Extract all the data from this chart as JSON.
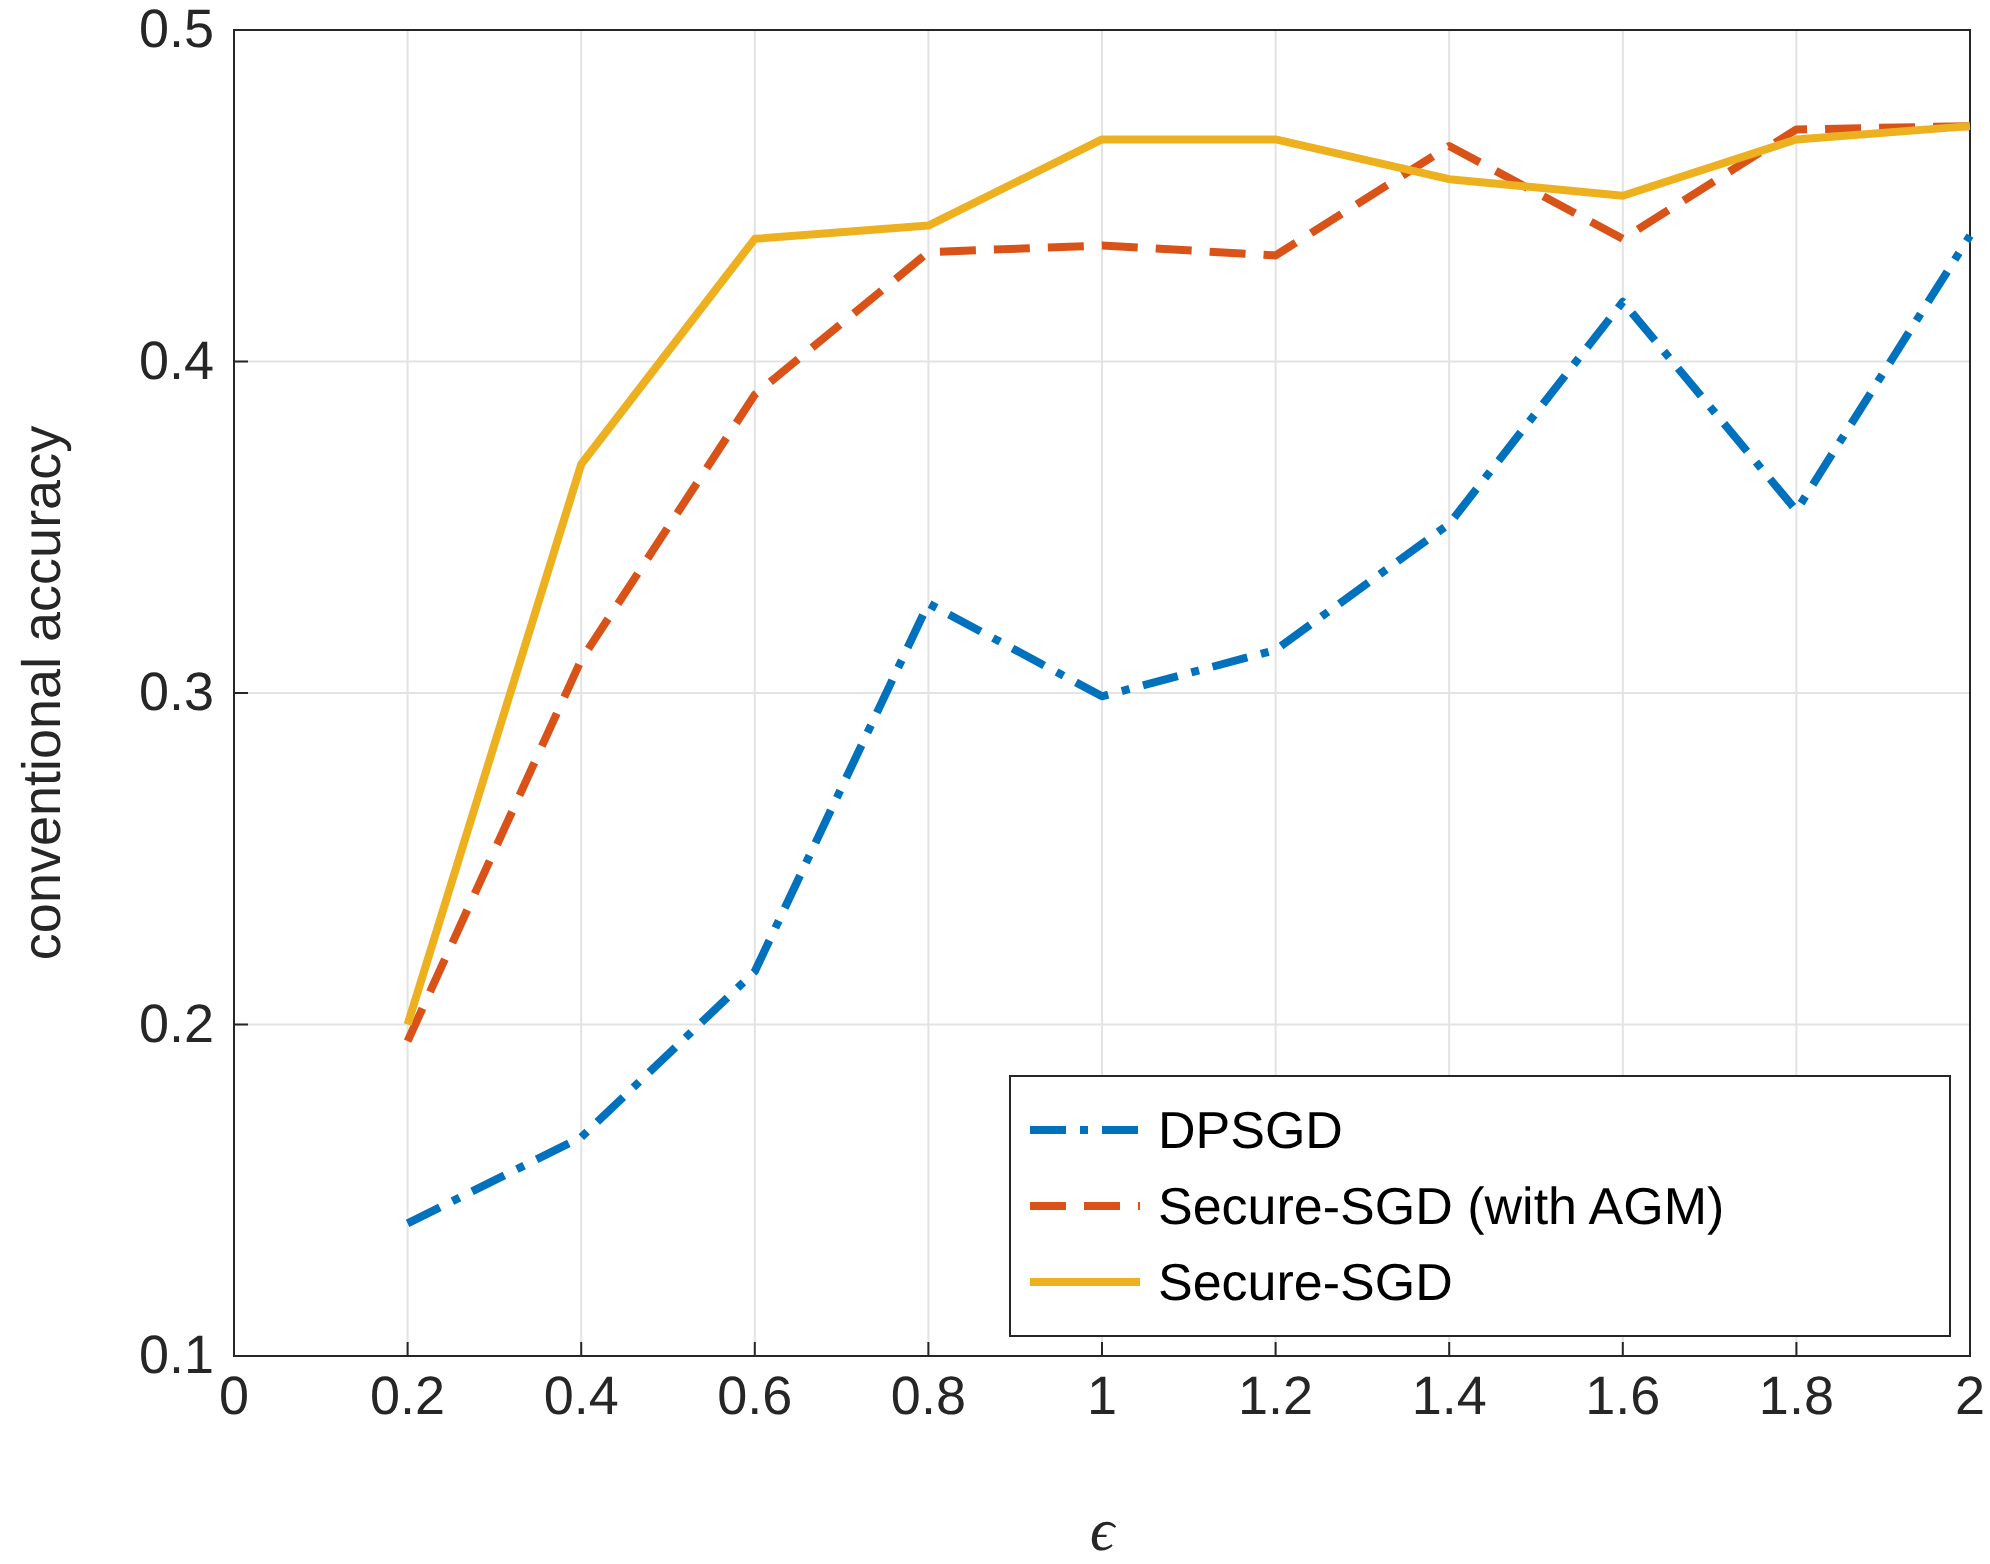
{
  "chart_data": {
    "type": "line",
    "xlabel": "ϵ",
    "ylabel": "conventional accuracy",
    "x": [
      0.2,
      0.4,
      0.6,
      0.8,
      1,
      1.2,
      1.4,
      1.6,
      1.8,
      2
    ],
    "series": [
      {
        "name": "DPSGD",
        "color": "#0072bd",
        "line_style": "dashdot",
        "values": [
          0.14,
          0.166,
          0.216,
          0.327,
          0.299,
          0.313,
          0.351,
          0.418,
          0.355,
          0.438
        ]
      },
      {
        "name": "Secure-SGD (with AGM)",
        "color": "#d95319",
        "line_style": "dashed",
        "values": [
          0.195,
          0.31,
          0.39,
          0.433,
          0.435,
          0.432,
          0.465,
          0.437,
          0.47,
          0.471
        ]
      },
      {
        "name": "Secure-SGD",
        "color": "#edb120",
        "line_style": "solid",
        "values": [
          0.2,
          0.369,
          0.437,
          0.441,
          0.467,
          0.467,
          0.455,
          0.45,
          0.467,
          0.471
        ]
      }
    ],
    "xlim": [
      0,
      2
    ],
    "xticks": [
      0,
      0.2,
      0.4,
      0.6,
      0.8,
      1,
      1.2,
      1.4,
      1.6,
      1.8,
      2
    ],
    "ylim": [
      0.1,
      0.5
    ],
    "yticks": [
      0.1,
      0.2,
      0.3,
      0.4,
      0.5
    ],
    "grid": true,
    "legend": "bottom right",
    "marker": "none"
  }
}
